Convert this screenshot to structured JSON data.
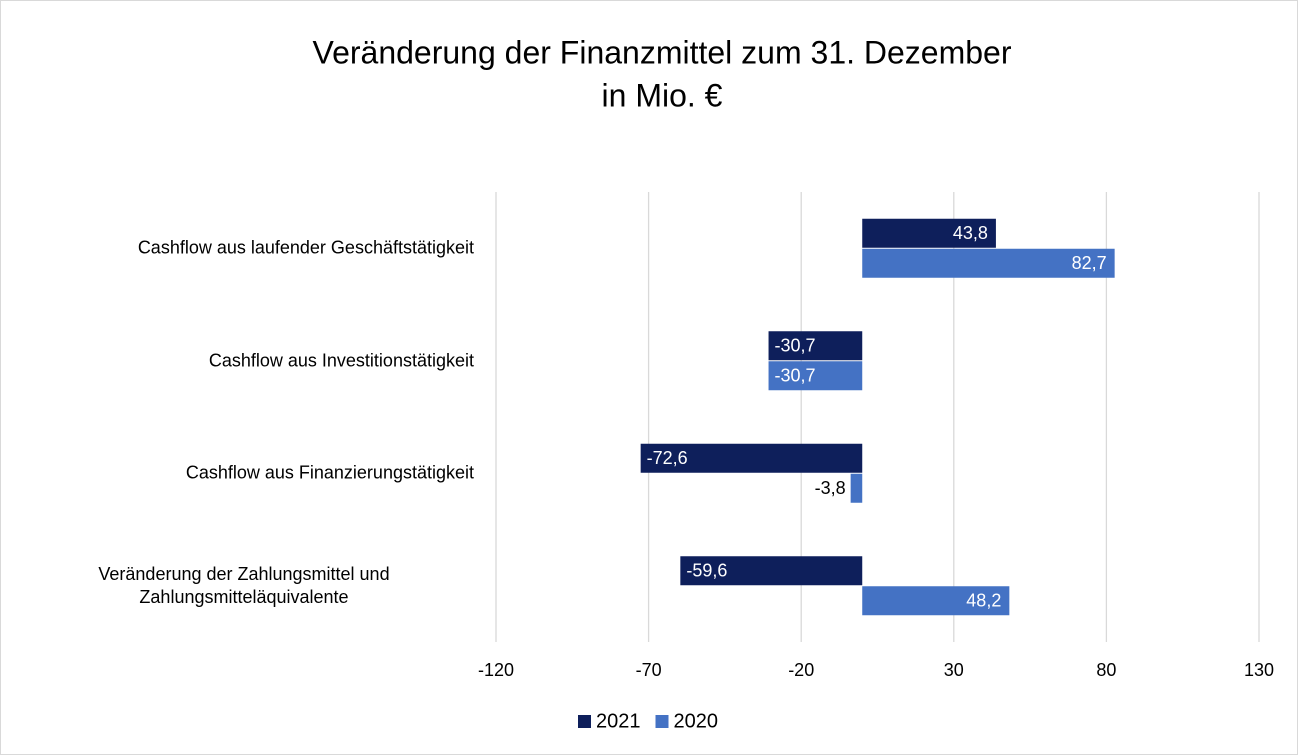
{
  "chart_data": {
    "type": "bar",
    "orientation": "horizontal",
    "title": [
      "Veränderung der Finanzmittel zum 31. Dezember",
      "in Mio. €"
    ],
    "categories": [
      "Cashflow aus laufender Geschäftstätigkeit",
      "Cashflow aus Investitionstätigkeit",
      "Cashflow aus Finanzierungstätigkeit",
      "Veränderung der Zahlungsmittel und Zahlungsmitteläquivalente"
    ],
    "series": [
      {
        "name": "2021",
        "color": "#0e1f5b",
        "values": [
          43.8,
          -30.7,
          -72.6,
          -59.6
        ],
        "value_labels": [
          "43,8",
          "-30,7",
          "-72,6",
          "-59,6"
        ]
      },
      {
        "name": "2020",
        "color": "#4472c4",
        "values": [
          82.7,
          -30.7,
          -3.8,
          48.2
        ],
        "value_labels": [
          "82,7",
          "-30,7",
          "-3,8",
          "48,2"
        ]
      }
    ],
    "xlim": [
      -120,
      130
    ],
    "xticks": [
      -120,
      -70,
      -20,
      30,
      80,
      130
    ],
    "grid": true,
    "legend": "bottom"
  }
}
